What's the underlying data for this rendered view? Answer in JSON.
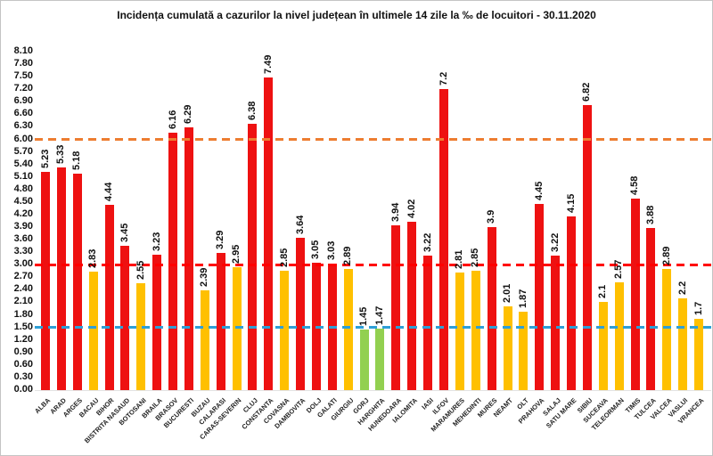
{
  "title": "Incidența cumulată a cazurilor la nivel județean în ultimele 14 zile la ‰ de locuitori - 30.11.2020",
  "chart_data": {
    "type": "bar",
    "title": "Incidența cumulată a cazurilor la nivel județean în ultimele 14 zile la ‰ de locuitori - 30.11.2020",
    "xlabel": "",
    "ylabel": "",
    "ylim": [
      0,
      8.1
    ],
    "ytick_step": 0.3,
    "grid": false,
    "legend": "none",
    "palette": {
      "red": "#EE1111",
      "yellow": "#FFC000",
      "green": "#92D050"
    },
    "reference_lines": [
      {
        "value": 6.0,
        "color": "#ED7D31",
        "style": "dashed",
        "name": "orange-threshold"
      },
      {
        "value": 3.0,
        "color": "#FF0000",
        "style": "dashed",
        "name": "red-threshold"
      },
      {
        "value": 1.5,
        "color": "#2E9FD6",
        "style": "dashed",
        "name": "blue-threshold"
      }
    ],
    "categories": [
      "ALBA",
      "ARAD",
      "ARGES",
      "BACAU",
      "BIHOR",
      "BISTRITA NASAUD",
      "BOTOSANI",
      "BRAILA",
      "BRASOV",
      "BUCURESTI",
      "BUZAU",
      "CALARASI",
      "CARAS-SEVERIN",
      "CLUJ",
      "CONSTANTA",
      "COVASNA",
      "DAMBOVITA",
      "DOLJ",
      "GALATI",
      "GIURGIU",
      "GORJ",
      "HARGHITA",
      "HUNEDOARA",
      "IALOMITA",
      "IASI",
      "ILFOV",
      "MARAMURES",
      "MEHEDINTI",
      "MURES",
      "NEAMT",
      "OLT",
      "PRAHOVA",
      "SALAJ",
      "SATU MARE",
      "SIBIU",
      "SUCEAVA",
      "TELEORMAN",
      "TIMIS",
      "TULCEA",
      "VALCEA",
      "VASLUI",
      "VRANCEA"
    ],
    "values": [
      5.23,
      5.33,
      5.18,
      2.83,
      4.44,
      3.45,
      2.55,
      3.23,
      6.16,
      6.29,
      2.39,
      3.29,
      2.95,
      6.38,
      7.49,
      2.85,
      3.64,
      3.05,
      3.03,
      2.89,
      1.45,
      1.47,
      3.94,
      4.02,
      3.22,
      7.2,
      2.81,
      2.85,
      3.9,
      2.01,
      1.87,
      4.45,
      3.22,
      4.15,
      6.82,
      2.1,
      2.57,
      4.58,
      3.88,
      2.89,
      2.2,
      1.7
    ],
    "value_labels": [
      "5.23",
      "5.33",
      "5.18",
      "2.83",
      "4.44",
      "3.45",
      "2.55",
      "3.23",
      "6.16",
      "6.29",
      "2.39",
      "3.29",
      "2.95",
      "6.38",
      "7.49",
      "2.85",
      "3.64",
      "3.05",
      "3.03",
      "2.89",
      "1.45",
      "1.47",
      "3.94",
      "4.02",
      "3.22",
      "7.2",
      "2.81",
      "2.85",
      "3.9",
      "2.01",
      "1.87",
      "4.45",
      "3.22",
      "4.15",
      "6.82",
      "2.1",
      "2.57",
      "4.58",
      "3.88",
      "2.89",
      "2.2",
      "1.7"
    ],
    "colors": [
      "red",
      "red",
      "red",
      "yellow",
      "red",
      "red",
      "yellow",
      "red",
      "red",
      "red",
      "yellow",
      "red",
      "yellow",
      "red",
      "red",
      "yellow",
      "red",
      "red",
      "red",
      "yellow",
      "green",
      "green",
      "red",
      "red",
      "red",
      "red",
      "yellow",
      "yellow",
      "red",
      "yellow",
      "yellow",
      "red",
      "red",
      "red",
      "red",
      "yellow",
      "yellow",
      "red",
      "red",
      "yellow",
      "yellow",
      "yellow"
    ]
  }
}
